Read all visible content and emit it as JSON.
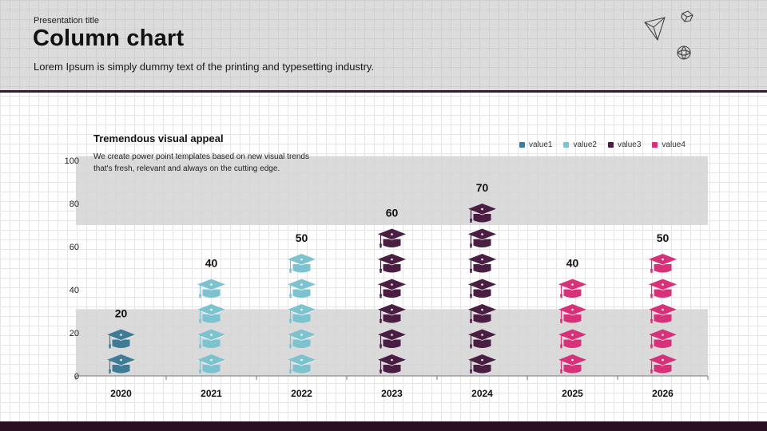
{
  "header": {
    "presentation_title": "Presentation title",
    "title": "Column chart",
    "subtitle": "Lorem Ipsum is simply dummy text of the printing and typesetting industry."
  },
  "chart_text": {
    "heading": "Tremendous visual appeal",
    "description": "We create power point templates based on new visual trends that's fresh, relevant and always on the cutting edge."
  },
  "colors": {
    "value1": "#3f7a96",
    "value2": "#7cc3cf",
    "value3": "#4a1d42",
    "value4": "#d7317a",
    "band": "#d3d3d3",
    "accent_dark": "#3a1630"
  },
  "legend": [
    {
      "label": "value1",
      "color": "#3f7a96"
    },
    {
      "label": "value2",
      "color": "#7cc3cf"
    },
    {
      "label": "value3",
      "color": "#4a1d42"
    },
    {
      "label": "value4",
      "color": "#d7317a"
    }
  ],
  "chart_data": {
    "type": "bar",
    "title": "Tremendous visual appeal",
    "categories": [
      "2020",
      "2021",
      "2022",
      "2023",
      "2024",
      "2025",
      "2026"
    ],
    "values": [
      20,
      40,
      50,
      60,
      70,
      40,
      50
    ],
    "value_labels": [
      "20",
      "40",
      "50",
      "60",
      "70",
      "40",
      "50"
    ],
    "series_of_category": [
      "value1",
      "value2",
      "value2",
      "value3",
      "value3",
      "value4",
      "value4"
    ],
    "icons_per_column": [
      2,
      4,
      5,
      6,
      7,
      4,
      5
    ],
    "y_ticks": [
      "0",
      "20",
      "40",
      "60",
      "80",
      "100"
    ],
    "y_tick_values": [
      0,
      20,
      40,
      60,
      80,
      100
    ],
    "ylim": [
      0,
      100
    ],
    "shaded_bands": [
      [
        0,
        31
      ],
      [
        70,
        102
      ]
    ],
    "xlabel": "",
    "ylabel": ""
  }
}
